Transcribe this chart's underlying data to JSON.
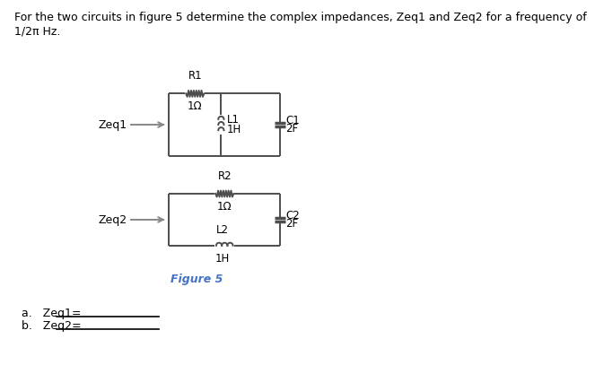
{
  "title_text": "For the two circuits in figure 5 determine the complex impedances, Zeq1 and Zeq2 for a frequency of\n1/2π Hz.",
  "title_fontsize": 9,
  "fig_caption": "Figure 5",
  "answer_a": "a.   Zeq1=",
  "answer_b": "b.   Zeq2=",
  "line_color": "#4d4d4d",
  "text_color": "#000000",
  "caption_color": "#4472C4",
  "bg_color": "#ffffff",
  "circuit1": {
    "label": "Zeq1",
    "R_label": "R1",
    "R_value": "1Ω",
    "L_label": "L1",
    "L_value": "1H",
    "C_label": "C1",
    "C_value": "2F"
  },
  "circuit2": {
    "label": "Zeq2",
    "R_label": "R2",
    "R_value": "1Ω",
    "C_label": "C2",
    "C_value": "2F",
    "L_label": "L2",
    "L_value": "1H"
  }
}
